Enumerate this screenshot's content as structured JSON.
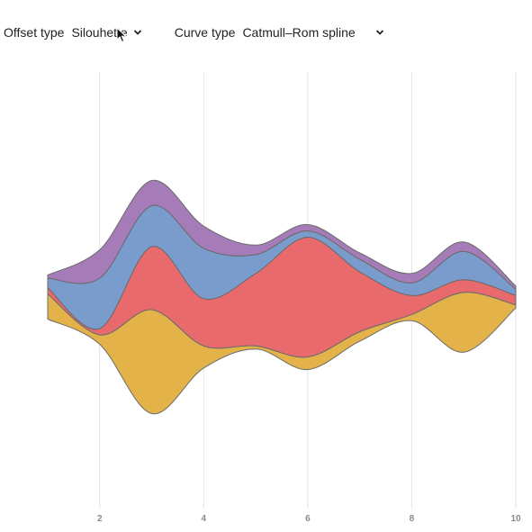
{
  "controls": {
    "offset": {
      "label": "Offset type",
      "value": "Silouhette"
    },
    "curve": {
      "label": "Curve type",
      "value": "Catmull–Rom spline"
    }
  },
  "colors": {
    "stroke": "#6b6b6b",
    "grid": "#e3e3e3",
    "tick": "#8a8a8a"
  },
  "chart_data": {
    "type": "area",
    "offset": "silhouette",
    "curve": "catmull-rom",
    "x": [
      1,
      2,
      3,
      4,
      5,
      6,
      7,
      8,
      9,
      10
    ],
    "xticks": [
      2,
      4,
      6,
      8,
      10
    ],
    "xlim": [
      1,
      10
    ],
    "grid": true,
    "series": [
      {
        "color": "#e3b34a",
        "values": [
          8,
          3,
          33,
          7,
          1,
          4,
          3,
          2,
          19,
          1
        ]
      },
      {
        "color": "#e86a6c",
        "values": [
          2,
          2,
          20,
          15,
          23,
          38,
          19,
          6,
          4,
          3
        ]
      },
      {
        "color": "#7a9ccc",
        "values": [
          3,
          16,
          13,
          16,
          6,
          2,
          4,
          4,
          9,
          2
        ]
      },
      {
        "color": "#a57bb8",
        "values": [
          1,
          9,
          8,
          7,
          3,
          2,
          2,
          3,
          3,
          1
        ]
      }
    ]
  }
}
